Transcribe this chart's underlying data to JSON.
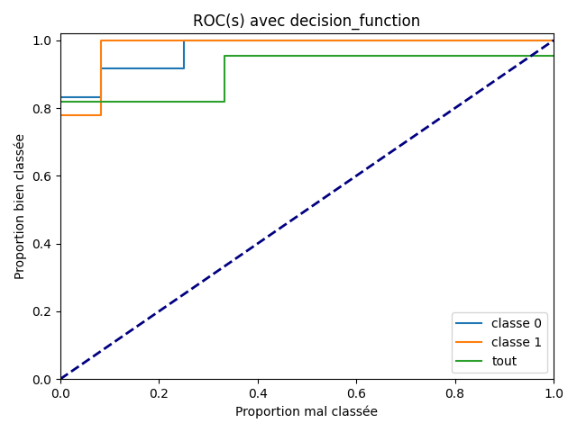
{
  "title": "ROC(s) avec decision_function",
  "xlabel": "Proportion mal classée",
  "ylabel": "Proportion bien classée",
  "xlim": [
    0.0,
    1.0
  ],
  "ylim": [
    0.0,
    1.02
  ],
  "roc_classe0": {
    "fpr": [
      0.0,
      0.0,
      0.083,
      0.083,
      0.25,
      0.25,
      1.0
    ],
    "tpr": [
      0.833,
      0.833,
      0.833,
      0.917,
      0.917,
      1.0,
      1.0
    ],
    "color": "#1f77b4",
    "label": "classe 0"
  },
  "roc_classe1": {
    "fpr": [
      0.0,
      0.0,
      0.083,
      0.083,
      0.167,
      0.167,
      1.0
    ],
    "tpr": [
      0.778,
      0.778,
      0.778,
      1.0,
      1.0,
      1.0,
      1.0
    ],
    "color": "#ff7f0e",
    "label": "classe 1"
  },
  "roc_tout": {
    "fpr": [
      0.0,
      0.0,
      0.333,
      0.333,
      1.0
    ],
    "tpr": [
      0.818,
      0.818,
      0.818,
      0.955,
      0.955
    ],
    "color": "#2ca02c",
    "label": "tout"
  },
  "diagonal": {
    "color": "navy",
    "linestyle": "--",
    "linewidth": 2
  },
  "legend_loc": "lower right",
  "figsize": [
    6.4,
    4.8
  ],
  "dpi": 100
}
